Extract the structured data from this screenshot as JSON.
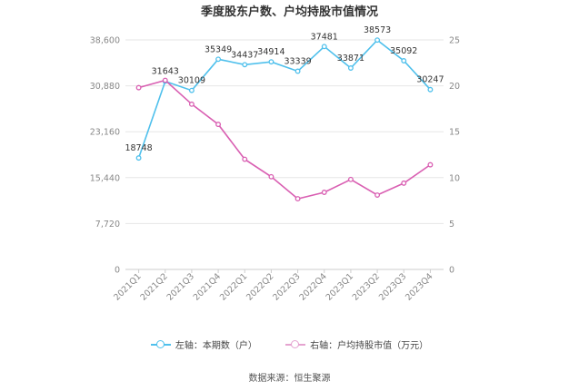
{
  "title": "季度股东户数、户均持股市值情况",
  "source": "数据来源：恒生聚源",
  "colors": {
    "left_series": "#4fc0ec",
    "right_series": "#d95fb2",
    "grid": "#e6e6e6",
    "axis_text": "#888888"
  },
  "chart_data": {
    "type": "line",
    "categories": [
      "2021Q1",
      "2021Q2",
      "2021Q3",
      "2021Q4",
      "2022Q1",
      "2022Q2",
      "2022Q3",
      "2022Q4",
      "2023Q1",
      "2023Q2",
      "2023Q3",
      "2023Q4"
    ],
    "y_left": {
      "ticks": [
        "0",
        "7,720",
        "15,440",
        "23,160",
        "30,880",
        "38,600"
      ],
      "ylim": [
        0,
        38600
      ]
    },
    "y_right": {
      "ticks": [
        "0",
        "5",
        "10",
        "15",
        "20",
        "25"
      ],
      "ylim": [
        0,
        25
      ]
    },
    "series": [
      {
        "name": "左轴：本期数（户）",
        "axis": "left",
        "values": [
          18748,
          31643,
          30109,
          35349,
          34437,
          34914,
          33339,
          37481,
          33871,
          38573,
          35092,
          30247
        ],
        "labels": [
          "18748",
          "31643",
          "30109",
          "35349",
          "34437",
          "34914",
          "33339",
          "37481",
          "33871",
          "38573",
          "35092",
          "30247"
        ]
      },
      {
        "name": "右轴：户均持股市值（万元）",
        "axis": "right",
        "values": [
          19.8,
          20.6,
          18.0,
          15.8,
          12.0,
          10.1,
          7.7,
          8.4,
          9.8,
          8.1,
          9.4,
          11.4
        ]
      }
    ],
    "grid": true,
    "legend_position": "bottom"
  }
}
